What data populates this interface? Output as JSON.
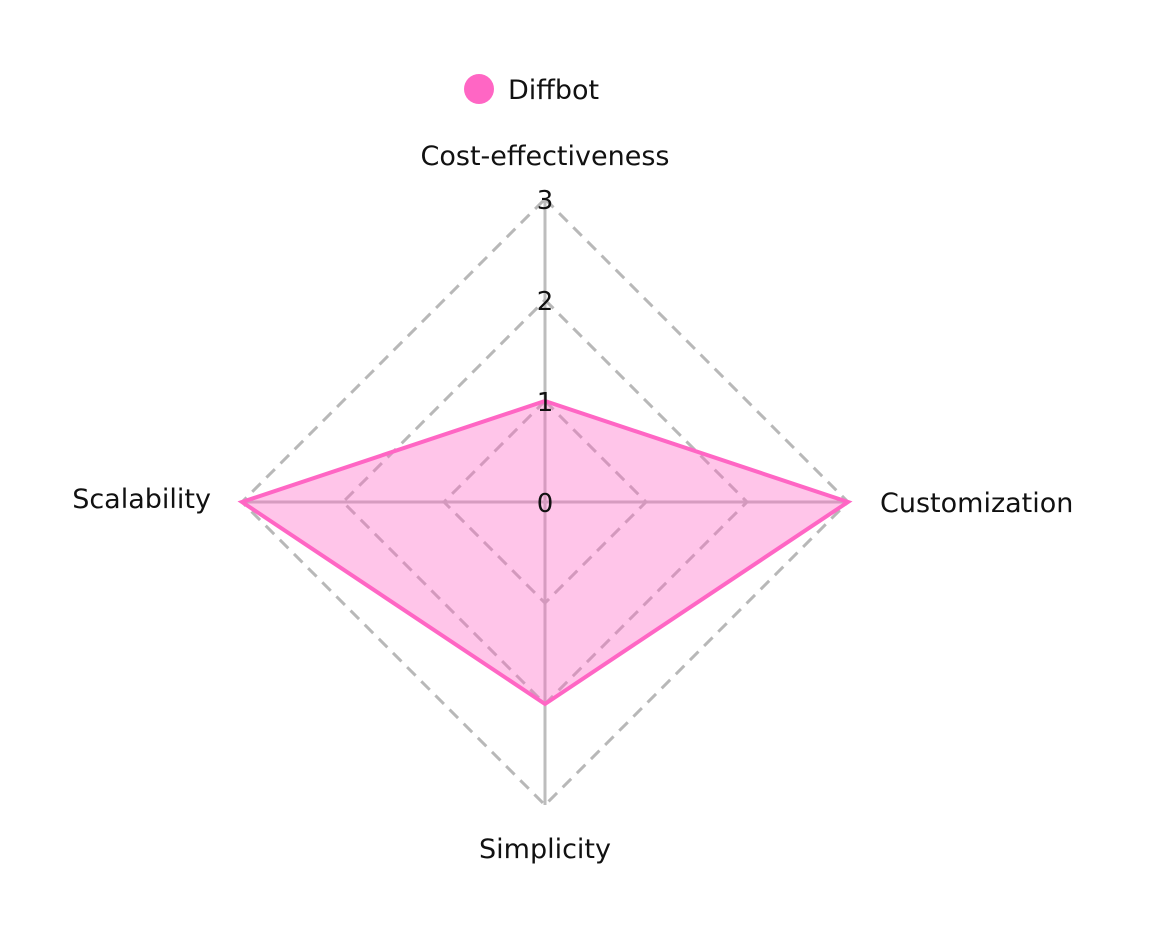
{
  "chart_data": {
    "type": "radar",
    "axes": [
      "Cost-effectiveness",
      "Customization",
      "Simplicity",
      "Scalability"
    ],
    "rlim": [
      0,
      3
    ],
    "ticks": [
      "0",
      "1",
      "2",
      "3"
    ],
    "grid": true,
    "legend_position": "top",
    "series": [
      {
        "name": "Diffbot",
        "values": [
          1,
          3,
          2,
          3
        ],
        "color": "#ff66c4"
      }
    ]
  }
}
